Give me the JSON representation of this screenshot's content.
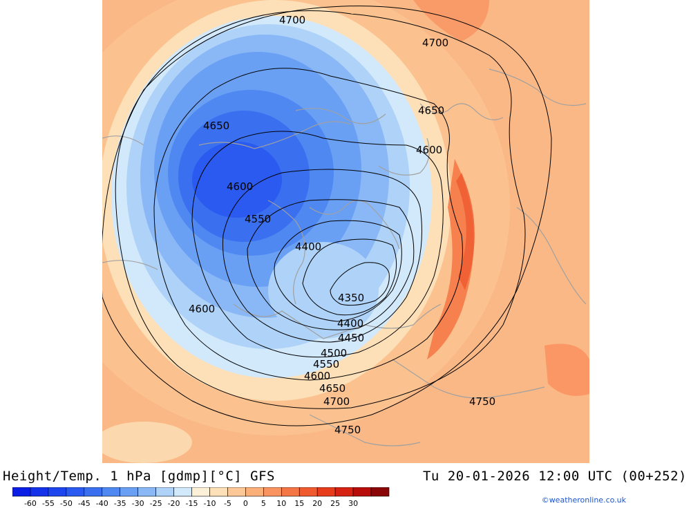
{
  "title_left": "Height/Temp. 1 hPa [gdmp][°C] GFS",
  "title_right": "Tu 20-01-2026 12:00 UTC (00+252)",
  "credit": "©weatheronline.co.uk",
  "contour_labels": [
    "4700",
    "4700",
    "4650",
    "4650",
    "4600",
    "4600",
    "4550",
    "4400",
    "4350",
    "4600",
    "4400",
    "4450",
    "4500",
    "4550",
    "4600",
    "4650",
    "4700",
    "4750",
    "4750"
  ],
  "color_scale": {
    "ticks": [
      "-60",
      "-55",
      "-50",
      "-45",
      "-40",
      "-35",
      "-30",
      "-25",
      "-20",
      "-15",
      "-10",
      "-5",
      "0",
      "5",
      "10",
      "15",
      "20",
      "25",
      "30"
    ],
    "colors": [
      "#0a1ee6",
      "#1432ea",
      "#1e46ee",
      "#2a5aef",
      "#3a70f0",
      "#5088f2",
      "#6aa0f4",
      "#8ab8f6",
      "#aed2f8",
      "#d2e8fb",
      "#fdf0d8",
      "#fde0b8",
      "#fcc898",
      "#fbb07a",
      "#f99460",
      "#f47644",
      "#ef5a2e",
      "#e63c1c",
      "#d62212",
      "#b80c0a",
      "#8a0606"
    ]
  }
}
